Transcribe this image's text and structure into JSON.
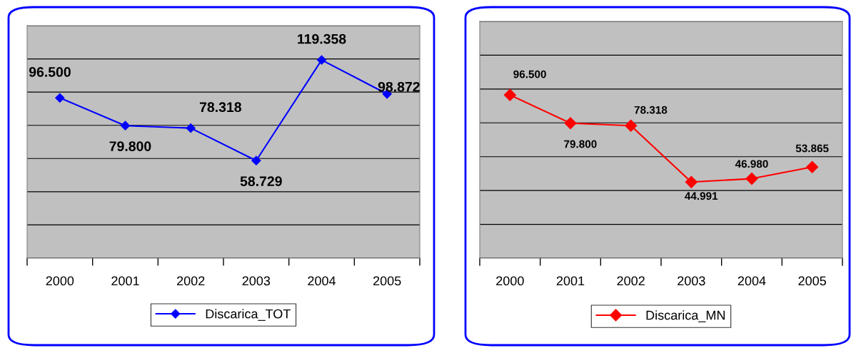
{
  "chart_data": [
    {
      "type": "line",
      "categories": [
        "2000",
        "2001",
        "2002",
        "2003",
        "2004",
        "2005"
      ],
      "series": [
        {
          "name": "Discarica_TOT",
          "color": "#0000ff",
          "values": [
            96.5,
            79.8,
            78.318,
            58.729,
            119.358,
            98.872
          ],
          "value_labels": [
            "96.500",
            "79.800",
            "78.318",
            "58.729",
            "119.358",
            "98.872"
          ]
        }
      ],
      "ylim": [
        0,
        140
      ],
      "yticks": [
        {
          "value": 0,
          "label": null
        },
        {
          "value": 20,
          "label": null
        },
        {
          "value": 40,
          "label": null
        },
        {
          "value": 60,
          "label": null
        },
        {
          "value": 80,
          "label": null
        },
        {
          "value": 100,
          "label": null
        },
        {
          "value": 120,
          "label": null
        },
        {
          "value": 140,
          "label": null
        }
      ],
      "tick_labels": "x",
      "grid": "y",
      "legend": "bottom",
      "marker": "diamond",
      "line_style": "solid"
    },
    {
      "type": "line",
      "categories": [
        "2000",
        "2001",
        "2002",
        "2003",
        "2004",
        "2005"
      ],
      "series": [
        {
          "name": "Discarica_MN",
          "color": "#ff0000",
          "values": [
            96.5,
            79.8,
            78.318,
            44.991,
            46.98,
            53.865
          ],
          "value_labels": [
            "96.500",
            "79.800",
            "78.318",
            "44.991",
            "46.980",
            "53.865"
          ]
        }
      ],
      "ylim": [
        0,
        140
      ],
      "yticks": [
        {
          "value": 0,
          "label": null
        },
        {
          "value": 20,
          "label": null
        },
        {
          "value": 40,
          "label": null
        },
        {
          "value": 60,
          "label": null
        },
        {
          "value": 80,
          "label": null
        },
        {
          "value": 100,
          "label": null
        },
        {
          "value": 120,
          "label": null
        },
        {
          "value": 140,
          "label": null
        }
      ],
      "tick_labels": "x",
      "grid": "y",
      "legend": "bottom",
      "marker": "diamond",
      "line_style": "solid"
    }
  ]
}
